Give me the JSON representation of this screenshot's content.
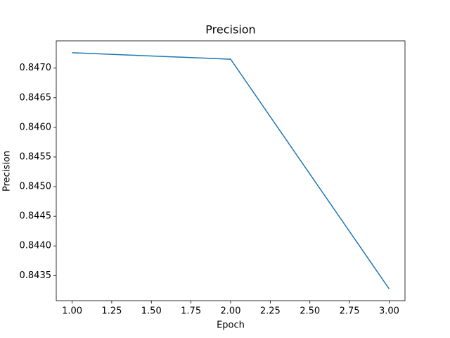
{
  "chart_data": {
    "type": "line",
    "title": "Precision",
    "x_label": "Epoch",
    "y_label": "Precision",
    "x": [
      1,
      2,
      3
    ],
    "series": [
      {
        "name": "Precision",
        "color": "#1f77b4",
        "values": [
          0.84726,
          0.84715,
          0.843275
        ]
      }
    ],
    "xlim": [
      0.9,
      3.1
    ],
    "xticks": [
      {
        "value": 1,
        "label": "1.00"
      },
      {
        "value": 1.25,
        "label": "1.25"
      },
      {
        "value": 1.5,
        "label": "1.50"
      },
      {
        "value": 1.75,
        "label": "1.75"
      },
      {
        "value": 2,
        "label": "2.00"
      },
      {
        "value": 2.25,
        "label": "2.25"
      },
      {
        "value": 2.5,
        "label": "2.50"
      },
      {
        "value": 2.75,
        "label": "2.75"
      },
      {
        "value": 3,
        "label": "3.00"
      }
    ],
    "ylim": [
      0.843076,
      0.84746
    ],
    "yticks": [
      0.8435,
      {
        "value": 0.844,
        "label": "0.8440"
      },
      0.8445,
      {
        "value": 0.845,
        "label": "0.8450"
      },
      0.8455,
      {
        "value": 0.846,
        "label": "0.8460"
      },
      0.8465,
      {
        "value": 0.847,
        "label": "0.8470"
      }
    ],
    "grid": false
  }
}
